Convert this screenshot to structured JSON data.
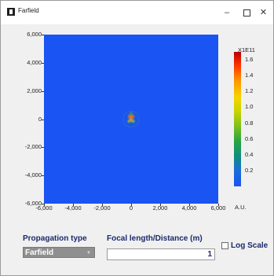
{
  "window": {
    "title": "Farfield",
    "minimize": "–",
    "close": "✕"
  },
  "chart_data": {
    "type": "heatmap",
    "title": "",
    "xlabel": "",
    "ylabel": "",
    "x_ticks": [
      "-6,000",
      "-4,000",
      "-2,000",
      "0",
      "2,000",
      "4,000",
      "6,000"
    ],
    "y_ticks": [
      "6,000",
      "4,000",
      "2,000",
      "0",
      "-2,000",
      "-4,000",
      "-6,000"
    ],
    "xlim": [
      -6000,
      6000
    ],
    "ylim": [
      -6000,
      6000
    ],
    "colorbar": {
      "scale_label": "X1E11",
      "unit_label": "A.U.",
      "ticks": [
        "1.6",
        "1.4",
        "1.2",
        "1.0",
        "0.8",
        "0.6",
        "0.4",
        "0.2"
      ],
      "range": [
        0,
        1.7
      ]
    },
    "background_color": "#1a54f2",
    "features": [
      {
        "x": -80,
        "y": 180,
        "value": 1.4
      },
      {
        "x": 80,
        "y": 180,
        "value": 1.4
      },
      {
        "x": 0,
        "y": -60,
        "value": 1.3
      },
      {
        "x": -150,
        "y": -150,
        "value": 0.8
      },
      {
        "x": 150,
        "y": -150,
        "value": 0.8
      },
      {
        "x": 0,
        "y": 400,
        "value": 0.6
      }
    ],
    "grid": false
  },
  "controls": {
    "propagation_type_label": "Propagation type",
    "propagation_type_value": "Farfield",
    "focal_length_label": "Focal length/Distance (m)",
    "focal_length_value": "1",
    "log_scale_label": "Log Scale",
    "log_scale_checked": false
  }
}
